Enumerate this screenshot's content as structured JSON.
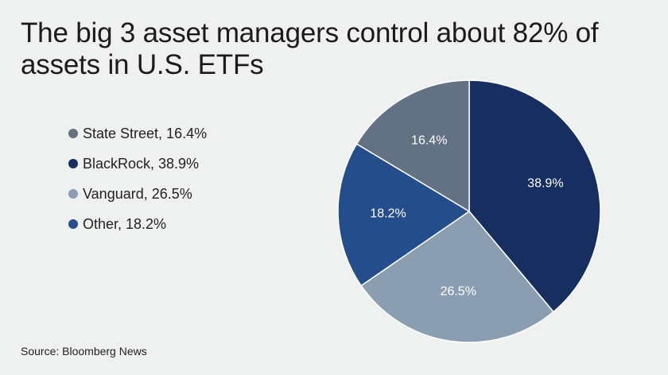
{
  "title": "The big 3 asset managers control about 82% of assets in U.S. ETFs",
  "source": "Source: Bloomberg News",
  "chart_data": {
    "type": "pie",
    "title": "The big 3 asset managers control about 82% of assets in U.S. ETFs",
    "categories": [
      "State Street",
      "BlackRock",
      "Vanguard",
      "Other"
    ],
    "values": [
      16.4,
      38.9,
      26.5,
      18.2
    ],
    "unit": "%",
    "colors": [
      "#637185",
      "#172e60",
      "#8a9db1",
      "#244e8b"
    ],
    "slice_labels": [
      "16.4%",
      "38.9%",
      "26.5%",
      "18.2%"
    ],
    "slice_order_clockwise_from_top": [
      "BlackRock",
      "Vanguard",
      "Other",
      "State Street"
    ],
    "legend": {
      "placement": "left",
      "entries": [
        {
          "label": "State Street, 16.4%",
          "color": "#637185"
        },
        {
          "label": "BlackRock, 38.9%",
          "color": "#172e60"
        },
        {
          "label": "Vanguard, 26.5%",
          "color": "#8a9db1"
        },
        {
          "label": "Other, 18.2%",
          "color": "#244e8b"
        }
      ]
    }
  }
}
